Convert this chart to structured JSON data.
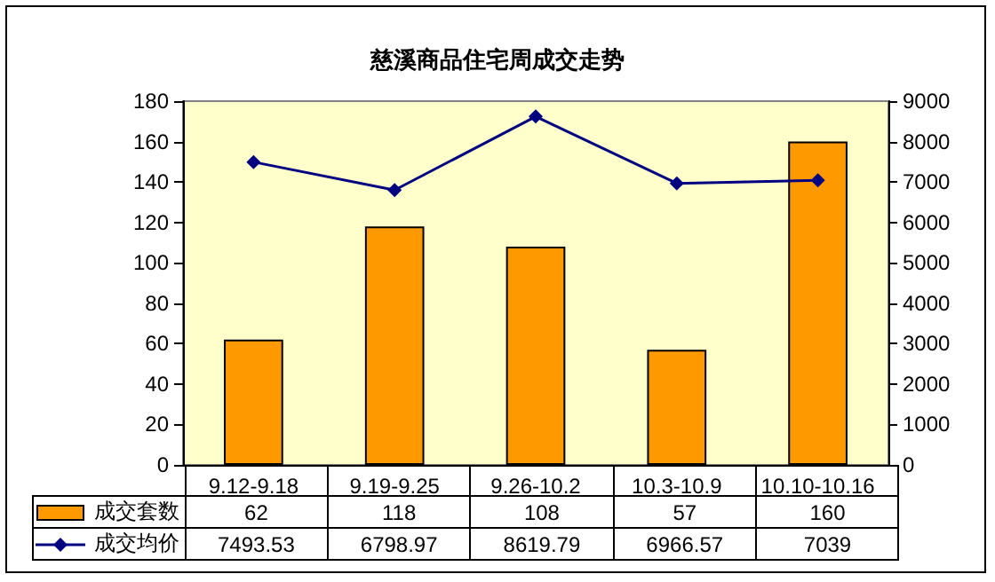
{
  "chart_data": {
    "type": "bar",
    "title": "慈溪商品住宅周成交走势",
    "categories": [
      "9.12-9.18",
      "9.19-9.25",
      "9.26-10.2",
      "10.3-10.9",
      "10.10-10.16"
    ],
    "series": [
      {
        "name": "成交套数",
        "color": "#ff9900",
        "values": [
          62,
          118,
          108,
          57,
          160
        ]
      },
      {
        "name": "成交均价",
        "type": "line",
        "axis": "y2",
        "color": "#000080",
        "marker": "diamond",
        "values": [
          7493.53,
          6798.97,
          8619.79,
          6966.57,
          7039
        ]
      }
    ],
    "ylim": [
      0,
      180
    ],
    "yticks": [
      0,
      20,
      40,
      60,
      80,
      100,
      120,
      140,
      160,
      180
    ],
    "y2lim": [
      0,
      9000
    ],
    "y2ticks": [
      0,
      1000,
      2000,
      3000,
      4000,
      5000,
      6000,
      7000,
      8000,
      9000
    ],
    "data_labels": true,
    "grid": false,
    "legend": "bottom"
  }
}
